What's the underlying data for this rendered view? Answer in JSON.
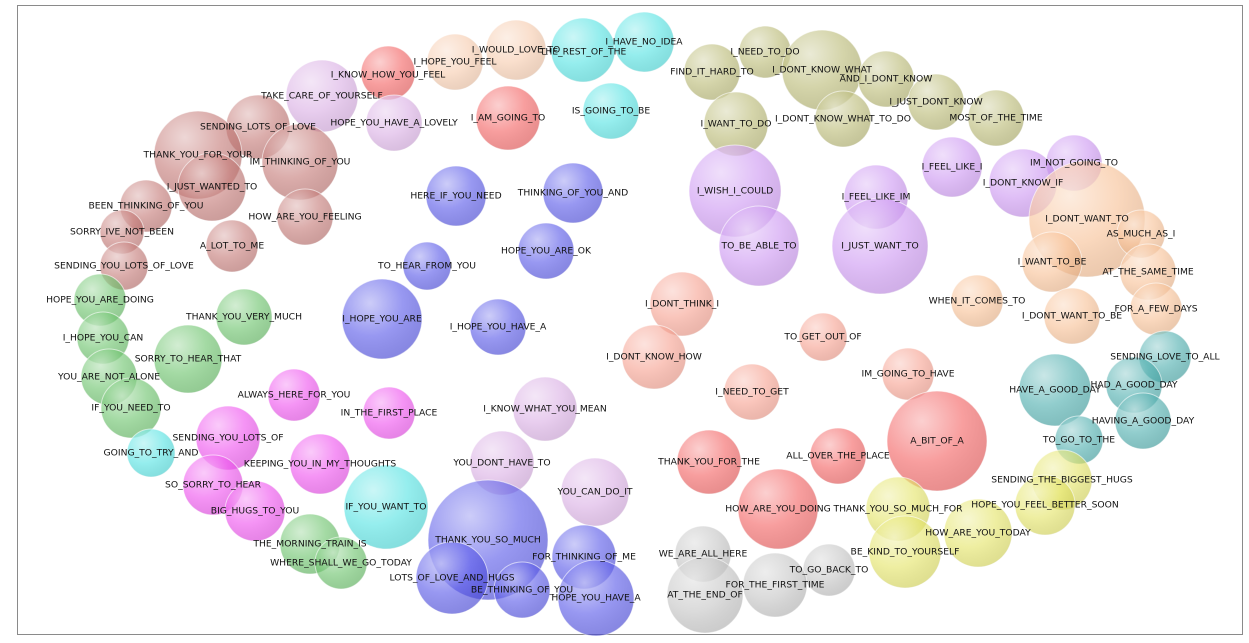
{
  "chart_data": {
    "type": "bubble_cluster",
    "palette": {
      "brown": "#c0706c",
      "blue": "#4b4be6",
      "green": "#5fbf5f",
      "magenta": "#ee44ee",
      "cyan": "#46e0e0",
      "peach": "#f5c6a6",
      "red": "#f25555",
      "salmon": "#f59a88",
      "olive": "#b5b56a",
      "purple": "#c88ef0",
      "lavender": "#d6a8e2",
      "teal": "#3fa8a8",
      "yellow": "#e2e25a",
      "gray": "#c0c0c0",
      "orange": "#f7bb8c"
    },
    "phrases": [
      "TAKE_CARE_OF_YOURSELF",
      "I_KNOW_HOW_YOU_FEEL",
      "I_HOPE_YOU_FEEL",
      "I_WOULD_LOVE_TO",
      "THE_REST_OF_THE",
      "I_HAVE_NO_IDEA",
      "SENDING_LOTS_OF_LOVE",
      "HOPE_YOU_HAVE_A_LOVELY",
      "I_AM_GOING_TO",
      "IS_GOING_TO_BE",
      "THANK_YOU_FOR_YOUR",
      "IM_THINKING_OF_YOU",
      "I_JUST_WANTED_TO",
      "BEEN_THINKING_OF_YOU",
      "HOW_ARE_YOU_FEELING",
      "SORRY_IVE_NOT_BEEN",
      "A_LOT_TO_ME",
      "SENDING_YOU_LOTS_OF_LOVE",
      "HERE_IF_YOU_NEED",
      "THINKING_OF_YOU_AND",
      "HOPE_YOU_ARE_OK",
      "TO_HEAR_FROM_YOU",
      "I_HOPE_YOU_ARE",
      "I_HOPE_YOU_HAVE_A",
      "HOPE_YOU_ARE_DOING",
      "THANK_YOU_VERY_MUCH",
      "I_HOPE_YOU_CAN",
      "SORRY_TO_HEAR_THAT",
      "YOU_ARE_NOT_ALONE",
      "ALWAYS_HERE_FOR_YOU",
      "IN_THE_FIRST_PLACE",
      "I_KNOW_WHAT_YOU_MEAN",
      "IF_YOU_NEED_TO",
      "SENDING_YOU_LOTS_OF",
      "GOING_TO_TRY_AND",
      "KEEPING_YOU_IN_MY_THOUGHTS",
      "YOU_DONT_HAVE_TO",
      "SO_SORRY_TO_HEAR",
      "YOU_CAN_DO_IT",
      "BIG_HUGS_TO_YOU",
      "IF_YOU_WANT_TO",
      "THE_MORNING_TRAIN_IS",
      "THANK_YOU_SO_MUCH",
      "WHERE_SHALL_WE_GO_TODAY",
      "FOR_THINKING_OF_ME",
      "LOTS_OF_LOVE_AND_HUGS",
      "BE_THINKING_OF_YOU",
      "HOPE_YOU_HAVE_A",
      "I_NEED_TO_DO",
      "FIND_IT_HARD_TO",
      "I_DONT_KNOW_WHAT",
      "AND_I_DONT_KNOW",
      "I_JUST_DONT_KNOW",
      "I_WANT_TO_DO",
      "I_DONT_KNOW_WHAT_TO_DO",
      "MOST_OF_THE_TIME",
      "IM_NOT_GOING_TO",
      "I_FEEL_LIKE_I",
      "I_DONT_KNOW_IF",
      "I_WISH_I_COULD",
      "I_FEEL_LIKE_IM",
      "I_DONT_WANT_TO",
      "AS_MUCH_AS_I",
      "TO_BE_ABLE_TO",
      "I_JUST_WANT_TO",
      "I_WANT_TO_BE",
      "AT_THE_SAME_TIME",
      "WHEN_IT_COMES_TO",
      "FOR_A_FEW_DAYS",
      "I_DONT_WANT_TO_BE",
      "I_DONT_THINK_I",
      "TO_GET_OUT_OF",
      "I_DONT_KNOW_HOW",
      "SENDING_LOVE_TO_ALL",
      "IM_GOING_TO_HAVE",
      "HAVE_A_GOOD_DAY",
      "HAD_A_GOOD_DAY",
      "I_NEED_TO_GET",
      "HAVING_A_GOOD_DAY",
      "A_BIT_OF_A",
      "TO_GO_TO_THE",
      "THANK_YOU_FOR_THE",
      "ALL_OVER_THE_PLACE",
      "SENDING_THE_BIGGEST_HUGS",
      "HOW_ARE_YOU_DOING",
      "THANK_YOU_SO_MUCH_FOR",
      "HOPE_YOU_FEEL_BETTER_SOON",
      "HOW_ARE_YOU_TODAY",
      "BE_KIND_TO_YOURSELF",
      "WE_ARE_ALL_HERE",
      "TO_GO_BACK_TO",
      "FOR_THE_FIRST_TIME",
      "AT_THE_END_OF"
    ]
  }
}
